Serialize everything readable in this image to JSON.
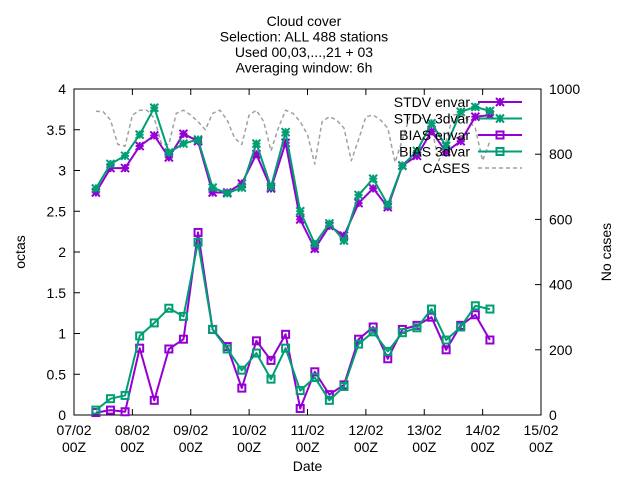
{
  "chart_data": {
    "type": "line",
    "title_lines": [
      "Cloud cover",
      "Selection: ALL    488 stations",
      "Used 00,03,...,21 + 03",
      "Averaging window:  6h"
    ],
    "xlabel": "Date",
    "ylabel": "octas",
    "y2label": "No cases",
    "xlim": [
      0,
      8
    ],
    "ylim": [
      0,
      4
    ],
    "y2lim": [
      0,
      1000
    ],
    "grid": false,
    "legend_position": "top-right",
    "x_ticks": [
      {
        "x": 0,
        "line1": "07/02",
        "line2": "00Z"
      },
      {
        "x": 1,
        "line1": "08/02",
        "line2": "00Z"
      },
      {
        "x": 2,
        "line1": "09/02",
        "line2": "00Z"
      },
      {
        "x": 3,
        "line1": "10/02",
        "line2": "00Z"
      },
      {
        "x": 4,
        "line1": "11/02",
        "line2": "00Z"
      },
      {
        "x": 5,
        "line1": "12/02",
        "line2": "00Z"
      },
      {
        "x": 6,
        "line1": "13/02",
        "line2": "00Z"
      },
      {
        "x": 7,
        "line1": "14/02",
        "line2": "00Z"
      },
      {
        "x": 8,
        "line1": "15/02",
        "line2": "00Z"
      }
    ],
    "y_ticks": [
      "0",
      "0.5",
      "1",
      "1.5",
      "2",
      "2.5",
      "3",
      "3.5",
      "4"
    ],
    "y2_ticks": [
      "0",
      "200",
      "400",
      "600",
      "800",
      "1000"
    ],
    "x": [
      0.375,
      0.625,
      0.875,
      1.125,
      1.375,
      1.625,
      1.875,
      2.125,
      2.375,
      2.625,
      2.875,
      3.125,
      3.375,
      3.625,
      3.875,
      4.125,
      4.375,
      4.625,
      4.875,
      5.125,
      5.375,
      5.625,
      5.875,
      6.125,
      6.375,
      6.625,
      6.875,
      7.125
    ],
    "series": [
      {
        "name": "STDV envar",
        "color": "#9400d3",
        "marker": "star",
        "axis": "y1",
        "values": [
          2.73,
          3.03,
          3.03,
          3.3,
          3.43,
          3.16,
          3.45,
          3.36,
          2.73,
          2.73,
          2.84,
          3.2,
          2.78,
          3.34,
          2.4,
          2.04,
          2.32,
          2.2,
          2.6,
          2.78,
          2.55,
          3.06,
          3.18,
          3.48,
          3.23,
          3.36,
          3.66,
          3.68
        ]
      },
      {
        "name": "STDV 3dvar",
        "color": "#009e73",
        "marker": "star",
        "axis": "y1",
        "values": [
          2.78,
          3.08,
          3.18,
          3.44,
          3.77,
          3.22,
          3.33,
          3.38,
          2.79,
          2.72,
          2.79,
          3.33,
          2.8,
          3.47,
          2.5,
          2.1,
          2.35,
          2.14,
          2.7,
          2.9,
          2.58,
          3.06,
          3.24,
          3.58,
          3.3,
          3.72,
          3.78,
          3.73
        ]
      },
      {
        "name": "BIAS envar",
        "color": "#9400d3",
        "marker": "square",
        "axis": "y1",
        "values": [
          0.03,
          0.06,
          0.04,
          0.82,
          0.18,
          0.81,
          0.93,
          2.24,
          1.05,
          0.84,
          0.33,
          0.91,
          0.67,
          0.99,
          0.08,
          0.53,
          0.25,
          0.37,
          0.93,
          1.08,
          0.69,
          1.05,
          1.1,
          1.2,
          0.8,
          1.1,
          1.23,
          0.92
        ]
      },
      {
        "name": "BIAS 3dvar",
        "color": "#009e73",
        "marker": "square",
        "axis": "y1",
        "values": [
          0.06,
          0.2,
          0.24,
          0.97,
          1.13,
          1.31,
          1.21,
          2.12,
          1.05,
          0.81,
          0.55,
          0.76,
          0.44,
          0.82,
          0.3,
          0.46,
          0.18,
          0.35,
          0.87,
          1.02,
          0.78,
          1.01,
          1.07,
          1.3,
          0.92,
          1.08,
          1.34,
          1.3
        ]
      },
      {
        "name": "CASES",
        "color": "#a0a0a0",
        "marker": "none",
        "dashed": true,
        "axis": "y2",
        "x": [
          0.375,
          0.5,
          0.625,
          0.75,
          0.875,
          1.0,
          1.125,
          1.25,
          1.375,
          1.5,
          1.625,
          1.75,
          1.875,
          2.0,
          2.125,
          2.25,
          2.375,
          2.5,
          2.625,
          2.75,
          2.875,
          3.0,
          3.125,
          3.25,
          3.375,
          3.5,
          3.625,
          3.75,
          3.875,
          4.0,
          4.125,
          4.25,
          4.375,
          4.5,
          4.625,
          4.75,
          4.875,
          5.0,
          5.125,
          5.25,
          5.375,
          5.5,
          5.625,
          5.75,
          5.875,
          6.0,
          6.125,
          6.25,
          6.375,
          6.5,
          6.625,
          6.75,
          6.875,
          7.0,
          7.125
        ],
        "values": [
          932,
          930,
          905,
          830,
          825,
          920,
          935,
          935,
          910,
          830,
          830,
          925,
          935,
          920,
          900,
          875,
          925,
          935,
          905,
          850,
          830,
          920,
          935,
          900,
          810,
          880,
          935,
          925,
          900,
          860,
          770,
          900,
          915,
          905,
          880,
          780,
          845,
          915,
          920,
          905,
          880,
          775,
          845,
          915,
          920,
          905,
          880,
          780,
          840,
          920,
          925,
          905,
          880,
          780,
          840
        ]
      }
    ]
  }
}
